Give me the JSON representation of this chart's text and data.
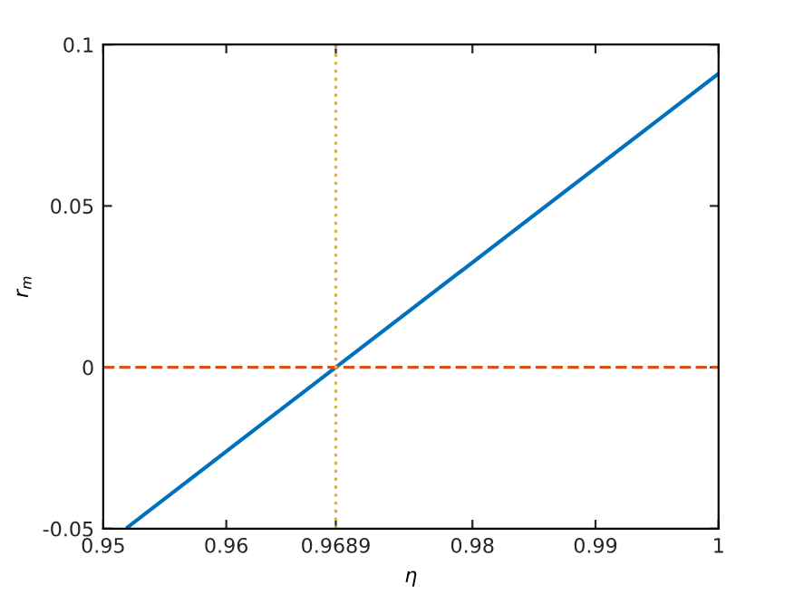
{
  "chart_data": {
    "type": "line",
    "xlabel": "η",
    "ylabel": "r$_{m}$",
    "x": [
      0.952,
      0.9689,
      1
    ],
    "series": [
      {
        "color": "#0072bd",
        "values": [
          -0.0495,
          0,
          0.091
        ]
      }
    ],
    "xlim": [
      0.95,
      1
    ],
    "ylim": [
      -0.05,
      0.1
    ],
    "xticks": [
      0.95,
      0.96,
      0.9689,
      0.98,
      0.99,
      1
    ],
    "yticks": [
      -0.05,
      0,
      0.05,
      0.1
    ],
    "ref_lines": [
      {
        "axis": "y",
        "value": 0,
        "color": "#d95319",
        "line_style": "dashed"
      },
      {
        "axis": "x",
        "value": 0.9689,
        "color": "#edb120",
        "line_style": "dotted"
      }
    ],
    "grid": false,
    "line_style": "solid",
    "marker": "none"
  }
}
